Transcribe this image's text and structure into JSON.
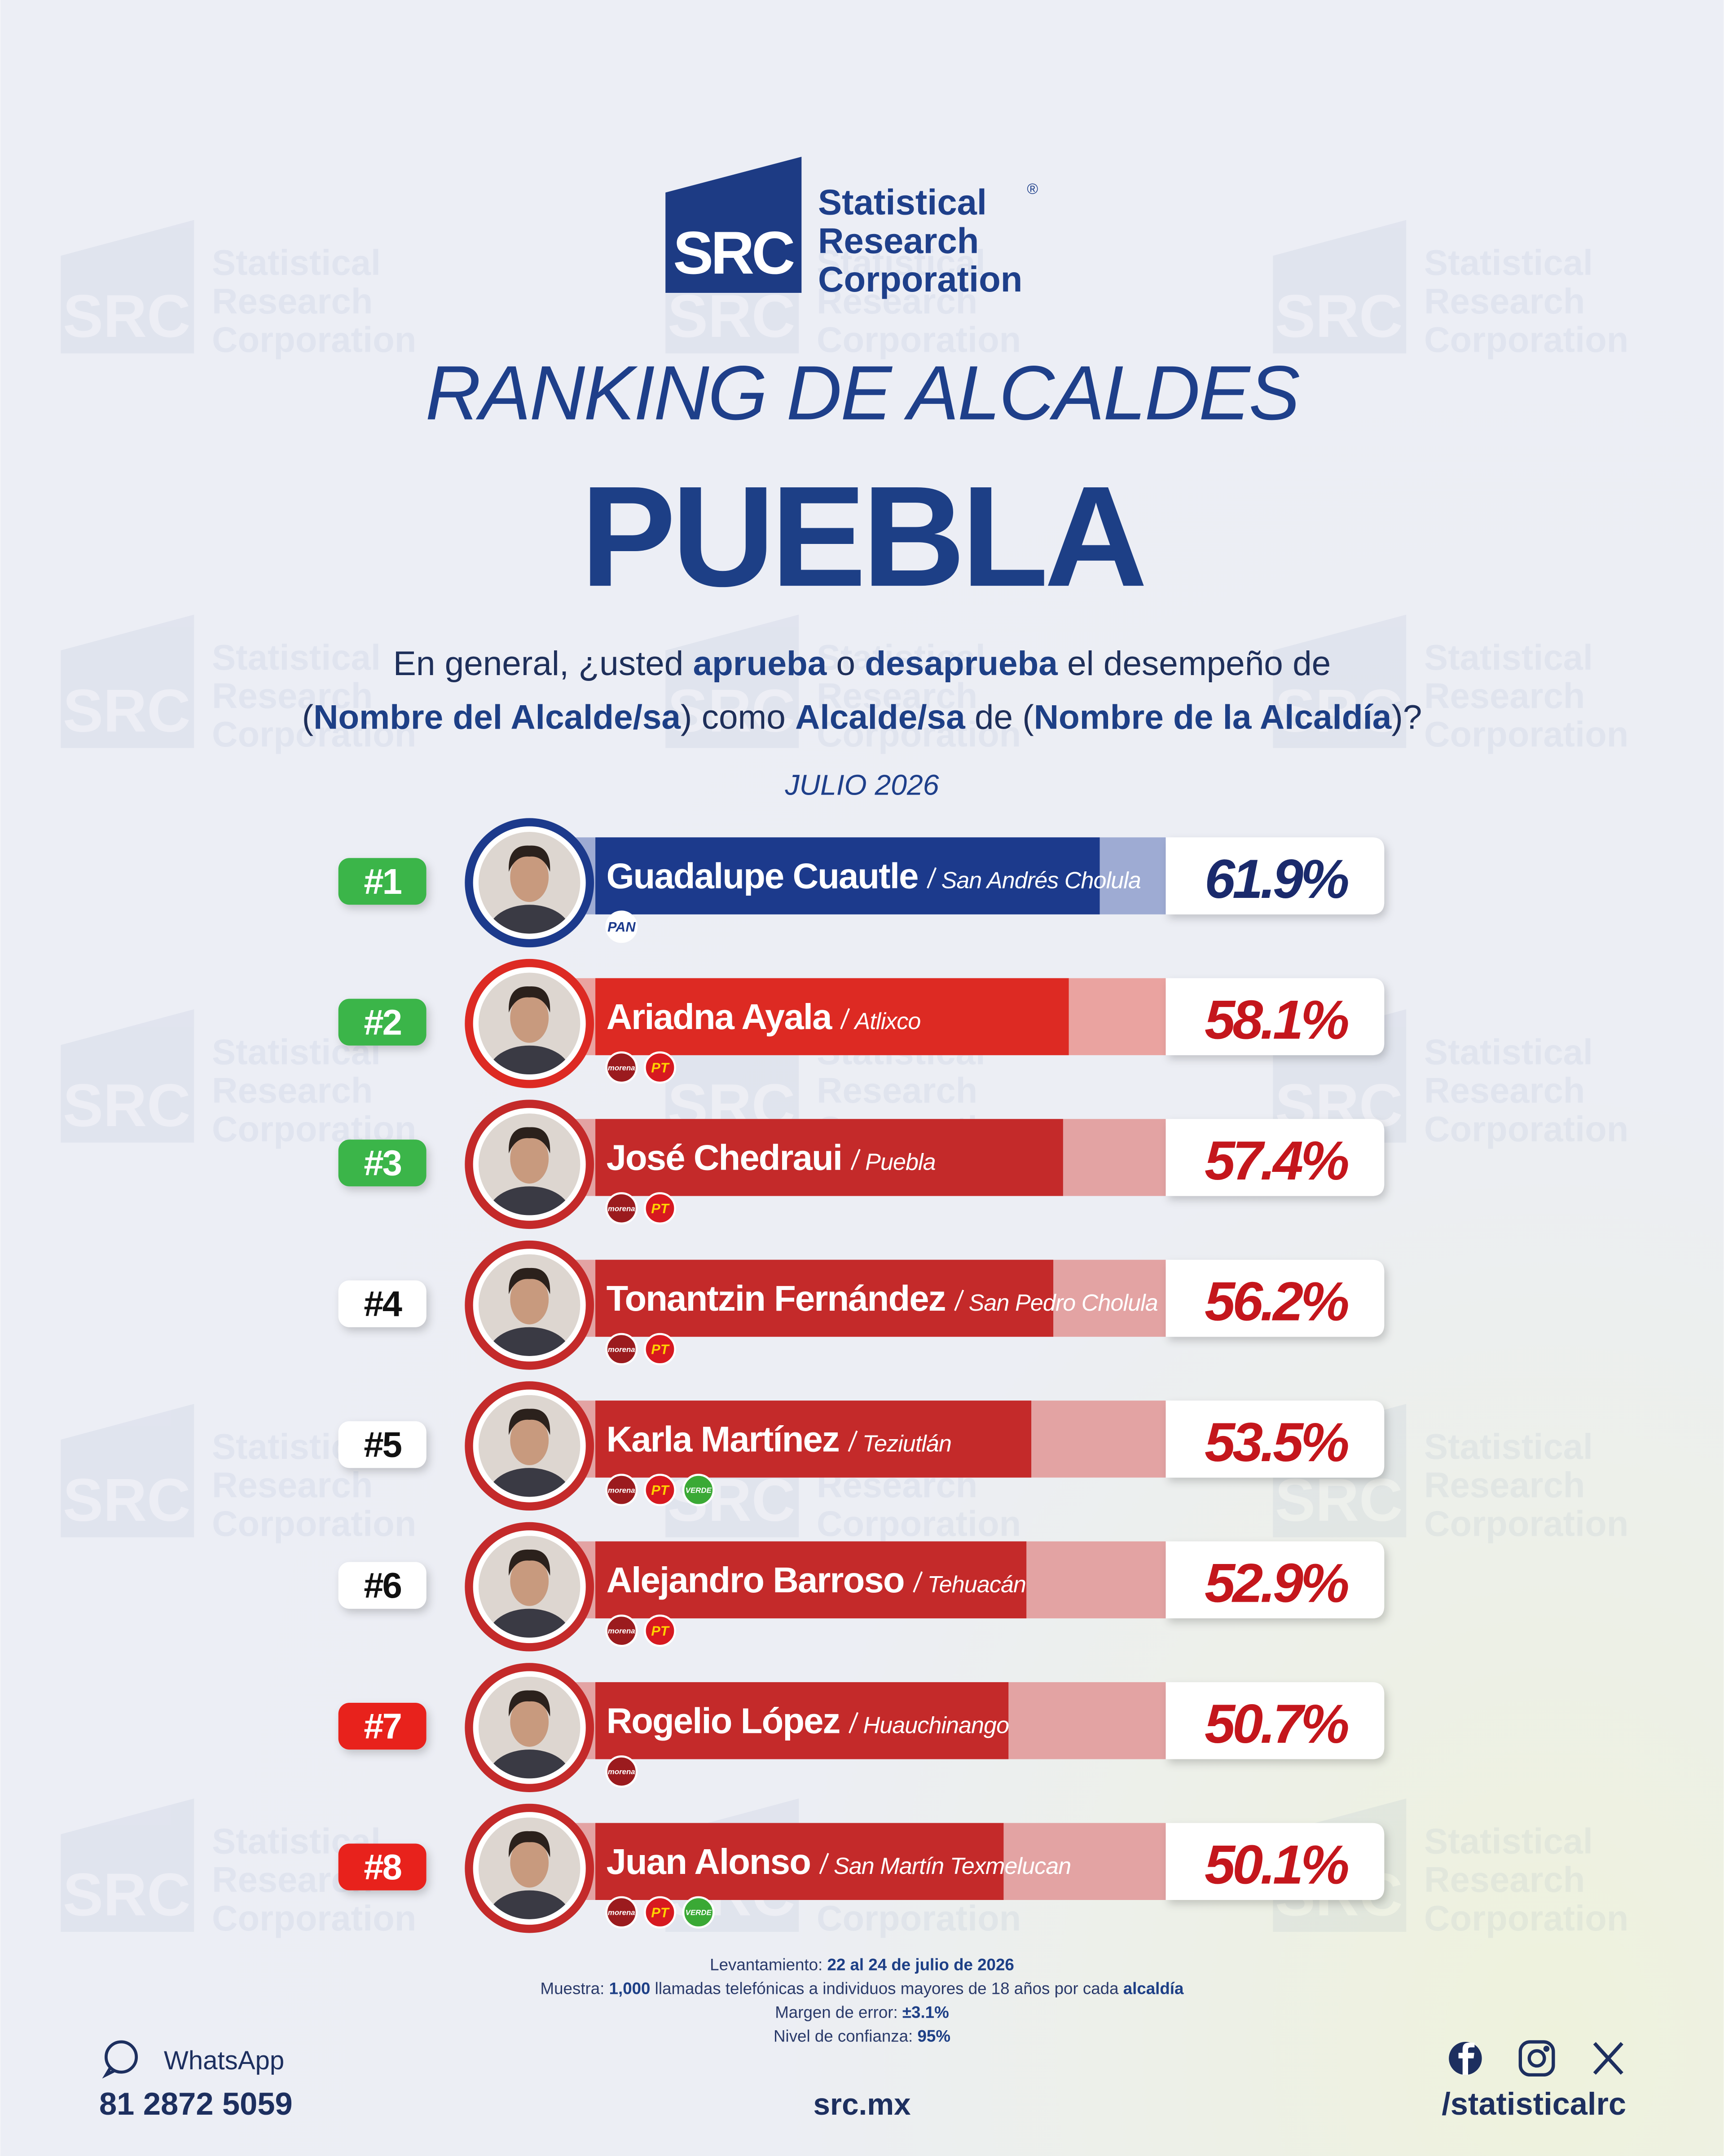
{
  "header": {
    "logo_mark": "SRC",
    "logo_lines": [
      "Statistical",
      "Research",
      "Corporation"
    ],
    "registered": "®",
    "title": "RANKING DE ALCALDES",
    "subtitle": "PUEBLA",
    "question": [
      [
        {
          "text": "En general, ¿usted "
        },
        {
          "text": "aprueba",
          "bold": true
        },
        {
          "text": " o "
        },
        {
          "text": "desaprueba",
          "bold": true
        },
        {
          "text": " el desempeño de"
        }
      ],
      [
        {
          "text": "("
        },
        {
          "text": "Nombre del Alcalde/sa",
          "bold": true
        },
        {
          "text": ") como "
        },
        {
          "text": "Alcalde/sa",
          "bold": true
        },
        {
          "text": " de ("
        },
        {
          "text": "Nombre de la Alcaldía",
          "bold": true
        },
        {
          "text": ")?"
        }
      ]
    ],
    "period": "JULIO 2026"
  },
  "chart_data": {
    "type": "bar",
    "categories": [
      "Guadalupe Cuautle",
      "Ariadna Ayala",
      "José Chedraui",
      "Tonantzin Fernández",
      "Karla Martínez",
      "Alejandro Barroso",
      "Rogelio López",
      "Juan Alonso"
    ],
    "regions": [
      "San Andrés Cholula",
      "Atlixco",
      "Puebla",
      "San Pedro Cholula",
      "Teziutlán",
      "Tehuacán",
      "Huauchinango",
      "San Martín Texmelucan"
    ],
    "ranks": [
      "#1",
      "#2",
      "#3",
      "#4",
      "#5",
      "#6",
      "#7",
      "#8"
    ],
    "rank_colors": [
      "#3ab54a",
      "#3ab54a",
      "#3ab54a",
      "#ffffff",
      "#ffffff",
      "#ffffff",
      "#e8231f",
      "#e8231f"
    ],
    "rank_text_colors": [
      "#ffffff",
      "#ffffff",
      "#ffffff",
      "#111111",
      "#111111",
      "#111111",
      "#ffffff",
      "#ffffff"
    ],
    "values": [
      61.9,
      58.1,
      57.4,
      56.2,
      53.5,
      52.9,
      50.7,
      50.1
    ],
    "value_labels": [
      "61.9%",
      "58.1%",
      "57.4%",
      "56.2%",
      "53.5%",
      "52.9%",
      "50.7%",
      "50.1%"
    ],
    "colors": [
      "#1c3a8c",
      "#dd2a23",
      "#c42a2a",
      "#c42a2a",
      "#c42a2a",
      "#c42a2a",
      "#c42a2a",
      "#c42a2a"
    ],
    "track_colors": [
      "#9eabd3",
      "#eaa3a0",
      "#e3a3a3",
      "#e3a3a3",
      "#e3a3a3",
      "#e3a3a3",
      "#e3a3a3",
      "#e3a3a3"
    ],
    "value_label_colors": [
      "#1a2a6c",
      "#c4161c",
      "#c4161c",
      "#c4161c",
      "#c4161c",
      "#c4161c",
      "#c4161c",
      "#c4161c"
    ],
    "parties": [
      [
        {
          "name": "PAN",
          "color": "#ffffff",
          "text_color": "#1c3a8c"
        }
      ],
      [
        {
          "name": "morena",
          "color": "#9b1b1e",
          "text_color": "#ffffff"
        },
        {
          "name": "PT",
          "color": "#d71920",
          "text_color": "#ffd200"
        }
      ],
      [
        {
          "name": "morena",
          "color": "#9b1b1e",
          "text_color": "#ffffff"
        },
        {
          "name": "PT",
          "color": "#d71920",
          "text_color": "#ffd200"
        }
      ],
      [
        {
          "name": "morena",
          "color": "#9b1b1e",
          "text_color": "#ffffff"
        },
        {
          "name": "PT",
          "color": "#d71920",
          "text_color": "#ffd200"
        }
      ],
      [
        {
          "name": "morena",
          "color": "#9b1b1e",
          "text_color": "#ffffff"
        },
        {
          "name": "PT",
          "color": "#d71920",
          "text_color": "#ffd200"
        },
        {
          "name": "VERDE",
          "color": "#3aa935",
          "text_color": "#ffffff"
        }
      ],
      [
        {
          "name": "morena",
          "color": "#9b1b1e",
          "text_color": "#ffffff"
        },
        {
          "name": "PT",
          "color": "#d71920",
          "text_color": "#ffd200"
        }
      ],
      [
        {
          "name": "morena",
          "color": "#9b1b1e",
          "text_color": "#ffffff"
        }
      ],
      [
        {
          "name": "morena",
          "color": "#9b1b1e",
          "text_color": "#ffffff"
        },
        {
          "name": "PT",
          "color": "#d71920",
          "text_color": "#ffd200"
        },
        {
          "name": "VERDE",
          "color": "#3aa935",
          "text_color": "#ffffff"
        }
      ]
    ],
    "xlim": [
      0,
      70
    ]
  },
  "footer": {
    "notes": [
      [
        {
          "text": "Levantamiento: "
        },
        {
          "text": "22 al 24 de julio de 2026",
          "bold": true
        }
      ],
      [
        {
          "text": "Muestra: "
        },
        {
          "text": "1,000",
          "bold": true
        },
        {
          "text": " llamadas telefónicas a individuos mayores de 18 años por cada "
        },
        {
          "text": "alcaldía",
          "bold": true
        }
      ],
      [
        {
          "text": "Margen de error: "
        },
        {
          "text": "±3.1%",
          "bold": true
        }
      ],
      [
        {
          "text": "Nivel de confianza: "
        },
        {
          "text": "95%",
          "bold": true
        }
      ]
    ],
    "whatsapp_label": "WhatsApp",
    "phone": "81 2872 5059",
    "website": "src.mx",
    "handle": "/statisticalrc"
  }
}
